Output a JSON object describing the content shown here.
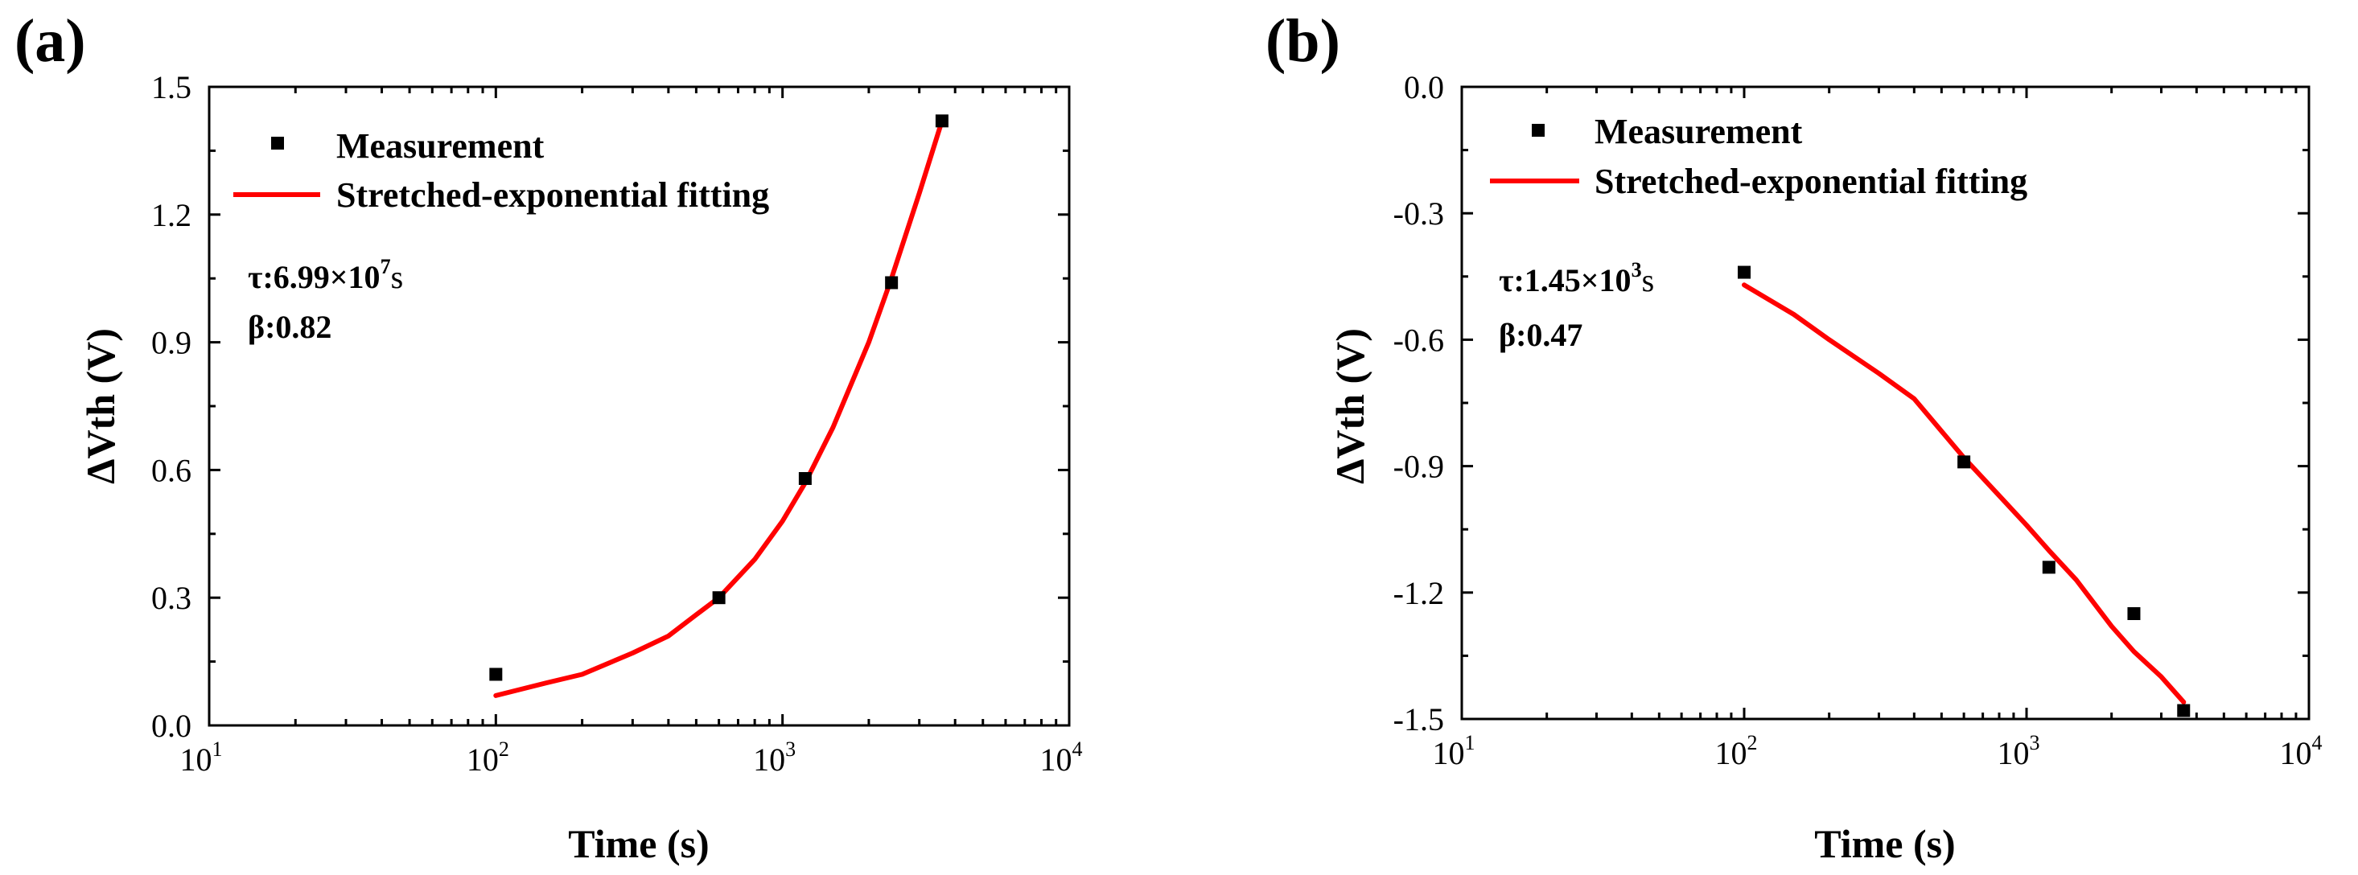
{
  "chart_data": [
    {
      "type": "scatter",
      "panel_label": "(a)",
      "xlabel": "Time (s)",
      "ylabel": "ΔVth (V)",
      "xscale": "log",
      "xlim": [
        10,
        10000
      ],
      "ylim": [
        0,
        1.5
      ],
      "x_ticks": [
        10,
        100,
        1000,
        10000
      ],
      "y_ticks": [
        0.0,
        0.3,
        0.6,
        0.9,
        1.2,
        1.5
      ],
      "y_tick_labels": [
        "0.0",
        "0.3",
        "0.6",
        "0.9",
        "1.2",
        "1.5"
      ],
      "x_tick_labels": [
        {
          "base": "10",
          "exp": "1"
        },
        {
          "base": "10",
          "exp": "2"
        },
        {
          "base": "10",
          "exp": "3"
        },
        {
          "base": "10",
          "exp": "4"
        }
      ],
      "legend": {
        "position": "top-left",
        "measurement_label": "Measurement",
        "fit_label": "Stretched-exponential fitting"
      },
      "annotations": {
        "tau_label": "τ:",
        "tau_mantissa": "6.99×10",
        "tau_exp": "7",
        "tau_unit": "s",
        "beta": "β:0.82"
      },
      "series": [
        {
          "name": "Measurement",
          "kind": "scatter",
          "x": [
            100,
            600,
            1200,
            2400,
            3600
          ],
          "y": [
            0.12,
            0.3,
            0.58,
            1.04,
            1.42
          ]
        },
        {
          "name": "Stretched-exponential fitting",
          "kind": "line",
          "color": "#ff0000",
          "x": [
            100,
            150,
            200,
            300,
            400,
            500,
            600,
            800,
            1000,
            1200,
            1500,
            2000,
            2400,
            3000,
            3600
          ],
          "y": [
            0.07,
            0.1,
            0.12,
            0.17,
            0.21,
            0.26,
            0.3,
            0.39,
            0.48,
            0.57,
            0.7,
            0.9,
            1.05,
            1.25,
            1.42
          ]
        }
      ]
    },
    {
      "type": "scatter",
      "panel_label": "(b)",
      "xlabel": "Time (s)",
      "ylabel": "ΔVth (V)",
      "xscale": "log",
      "xlim": [
        10,
        10000
      ],
      "ylim": [
        -1.5,
        0.0
      ],
      "x_ticks": [
        10,
        100,
        1000,
        10000
      ],
      "y_ticks": [
        0.0,
        -0.3,
        -0.6,
        -0.9,
        -1.2,
        -1.5
      ],
      "y_tick_labels": [
        "0.0",
        "-0.3",
        "-0.6",
        "-0.9",
        "-1.2",
        "-1.5"
      ],
      "x_tick_labels": [
        {
          "base": "10",
          "exp": "1"
        },
        {
          "base": "10",
          "exp": "2"
        },
        {
          "base": "10",
          "exp": "3"
        },
        {
          "base": "10",
          "exp": "4"
        }
      ],
      "legend": {
        "position": "top-left",
        "measurement_label": "Measurement",
        "fit_label": "Stretched-exponential fitting"
      },
      "annotations": {
        "tau_label": "τ:",
        "tau_mantissa": "1.45×10",
        "tau_exp": "3",
        "tau_unit": "s",
        "beta": "β:0.47"
      },
      "series": [
        {
          "name": "Measurement",
          "kind": "scatter",
          "x": [
            100,
            600,
            1200,
            2400,
            3600
          ],
          "y": [
            -0.44,
            -0.89,
            -1.14,
            -1.25,
            -1.48
          ]
        },
        {
          "name": "Stretched-exponential fitting",
          "kind": "line",
          "color": "#ff0000",
          "x": [
            100,
            150,
            200,
            300,
            400,
            600,
            800,
            1000,
            1200,
            1500,
            2000,
            2400,
            3000,
            3600
          ],
          "y": [
            -0.47,
            -0.54,
            -0.6,
            -0.68,
            -0.74,
            -0.88,
            -0.97,
            -1.04,
            -1.1,
            -1.17,
            -1.28,
            -1.34,
            -1.4,
            -1.46
          ]
        }
      ]
    }
  ]
}
